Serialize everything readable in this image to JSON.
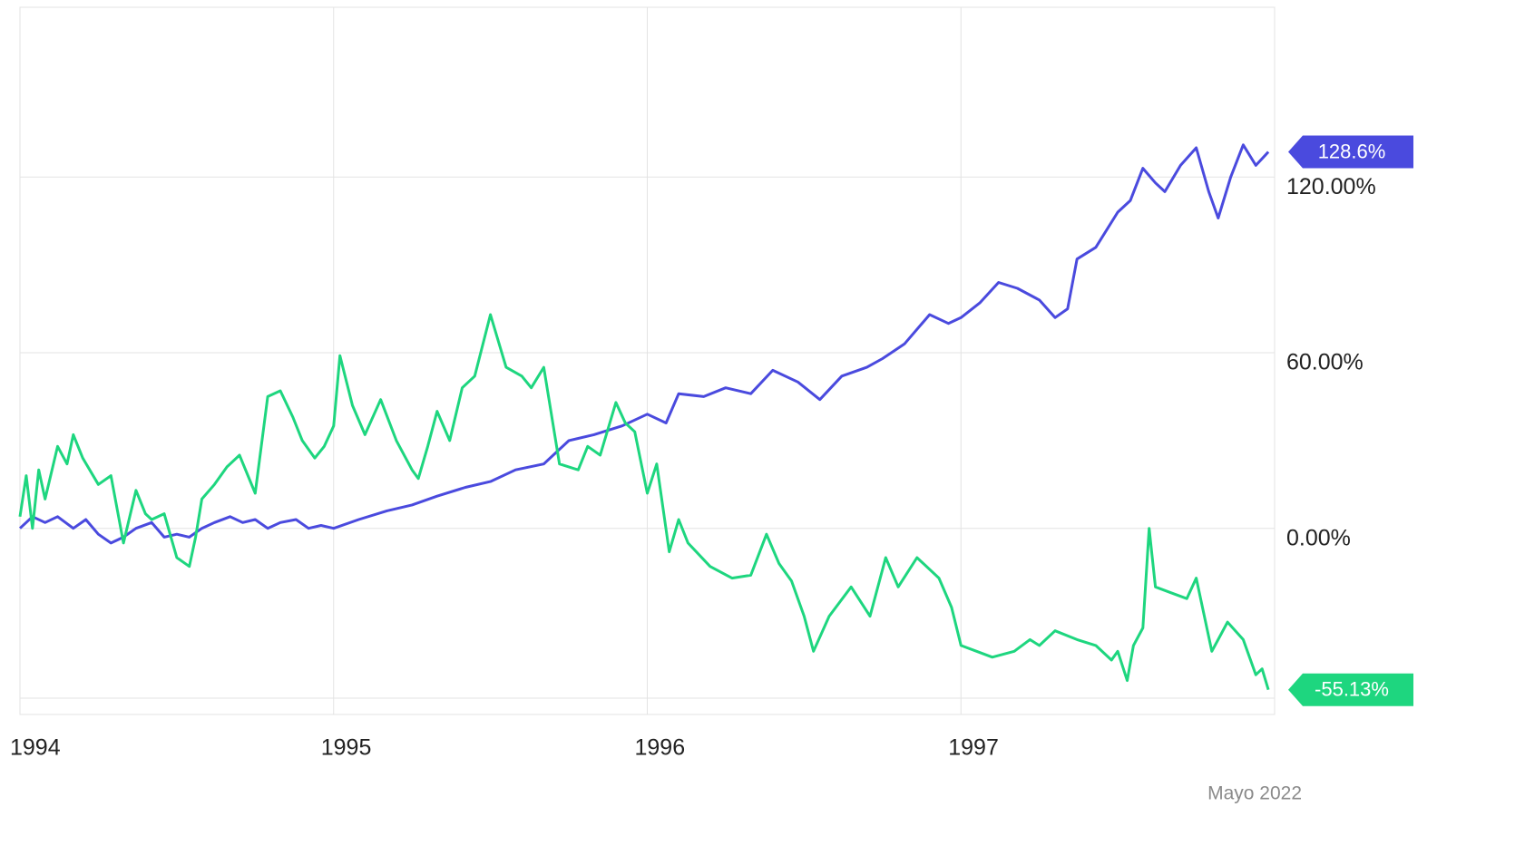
{
  "chart_data": {
    "type": "line",
    "source": "Mayo 2022",
    "xlim": [
      1994,
      1998
    ],
    "xticks": [
      1994,
      1995,
      1996,
      1997
    ],
    "ylim": [
      -58,
      178
    ],
    "yticks": [
      {
        "value": 0,
        "label": "0.00%"
      },
      {
        "value": 60,
        "label": "60.00%"
      },
      {
        "value": 120,
        "label": "120.00%"
      }
    ],
    "grid": true,
    "series": [
      {
        "color": "#4a4ade",
        "end_label": "128.6%",
        "x": [
          1994.0,
          1994.04,
          1994.08,
          1994.12,
          1994.17,
          1994.21,
          1994.25,
          1994.29,
          1994.33,
          1994.37,
          1994.42,
          1994.46,
          1994.5,
          1994.54,
          1994.58,
          1994.62,
          1994.67,
          1994.71,
          1994.75,
          1994.79,
          1994.83,
          1994.88,
          1994.92,
          1994.96,
          1995.0,
          1995.08,
          1995.17,
          1995.25,
          1995.33,
          1995.42,
          1995.5,
          1995.58,
          1995.67,
          1995.75,
          1995.83,
          1995.92,
          1996.0,
          1996.06,
          1996.1,
          1996.18,
          1996.25,
          1996.33,
          1996.4,
          1996.48,
          1996.55,
          1996.62,
          1996.7,
          1996.75,
          1996.82,
          1996.9,
          1996.96,
          1997.0,
          1997.06,
          1997.12,
          1997.18,
          1997.25,
          1997.3,
          1997.34,
          1997.37,
          1997.43,
          1997.5,
          1997.54,
          1997.58,
          1997.62,
          1997.65,
          1997.7,
          1997.75,
          1997.79,
          1997.82,
          1997.86,
          1997.9,
          1997.94,
          1997.98
        ],
        "values": [
          0,
          4,
          2,
          4,
          0,
          3,
          -2,
          -5,
          -3,
          0,
          2,
          -3,
          -2,
          -3,
          0,
          2,
          4,
          2,
          3,
          0,
          2,
          3,
          0,
          1,
          0,
          3,
          6,
          8,
          11,
          14,
          16,
          20,
          22,
          30,
          32,
          35,
          39,
          36,
          46,
          45,
          48,
          46,
          54,
          50,
          44,
          52,
          55,
          58,
          63,
          73,
          70,
          72,
          77,
          84,
          82,
          78,
          72,
          75,
          92,
          96,
          108,
          112,
          123,
          118,
          115,
          124,
          130,
          115,
          106,
          120,
          131,
          124,
          128.6
        ]
      },
      {
        "color": "#1ed67f",
        "end_label": "-55.13%",
        "x": [
          1994.0,
          1994.02,
          1994.04,
          1994.06,
          1994.08,
          1994.12,
          1994.15,
          1994.17,
          1994.2,
          1994.25,
          1994.29,
          1994.33,
          1994.37,
          1994.4,
          1994.42,
          1994.46,
          1994.5,
          1994.54,
          1994.56,
          1994.58,
          1994.62,
          1994.66,
          1994.7,
          1994.75,
          1994.79,
          1994.83,
          1994.87,
          1994.9,
          1994.94,
          1994.97,
          1995.0,
          1995.02,
          1995.06,
          1995.1,
          1995.15,
          1995.2,
          1995.25,
          1995.27,
          1995.3,
          1995.33,
          1995.37,
          1995.41,
          1995.45,
          1995.5,
          1995.55,
          1995.6,
          1995.63,
          1995.67,
          1995.72,
          1995.78,
          1995.81,
          1995.85,
          1995.9,
          1995.93,
          1995.96,
          1996.0,
          1996.03,
          1996.07,
          1996.1,
          1996.13,
          1996.2,
          1996.27,
          1996.33,
          1996.38,
          1996.42,
          1996.46,
          1996.5,
          1996.53,
          1996.58,
          1996.65,
          1996.71,
          1996.76,
          1996.8,
          1996.86,
          1996.93,
          1996.97,
          1997.0,
          1997.05,
          1997.1,
          1997.17,
          1997.22,
          1997.25,
          1997.3,
          1997.37,
          1997.43,
          1997.48,
          1997.5,
          1997.53,
          1997.55,
          1997.58,
          1997.6,
          1997.62,
          1997.67,
          1997.72,
          1997.75,
          1997.8,
          1997.83,
          1997.85,
          1997.9,
          1997.94,
          1997.96,
          1997.98
        ],
        "values": [
          4,
          18,
          0,
          20,
          10,
          28,
          22,
          32,
          24,
          15,
          18,
          -5,
          13,
          5,
          3,
          5,
          -10,
          -13,
          -3,
          10,
          15,
          21,
          25,
          12,
          45,
          47,
          38,
          30,
          24,
          28,
          35,
          59,
          42,
          32,
          44,
          30,
          20,
          17,
          28,
          40,
          30,
          48,
          52,
          73,
          55,
          52,
          48,
          55,
          22,
          20,
          28,
          25,
          43,
          36,
          33,
          12,
          22,
          -8,
          3,
          -5,
          -13,
          -17,
          -16,
          -2,
          -12,
          -18,
          -30,
          -42,
          -30,
          -20,
          -30,
          -10,
          -20,
          -10,
          -17,
          -27,
          -40,
          -42,
          -44,
          -42,
          -38,
          -40,
          -35,
          -38,
          -40,
          -45,
          -42,
          -52,
          -40,
          -34,
          0,
          -20,
          -22,
          -24,
          -17,
          -42,
          -36,
          -32,
          -38,
          -50,
          -48,
          -55.13
        ]
      }
    ]
  }
}
